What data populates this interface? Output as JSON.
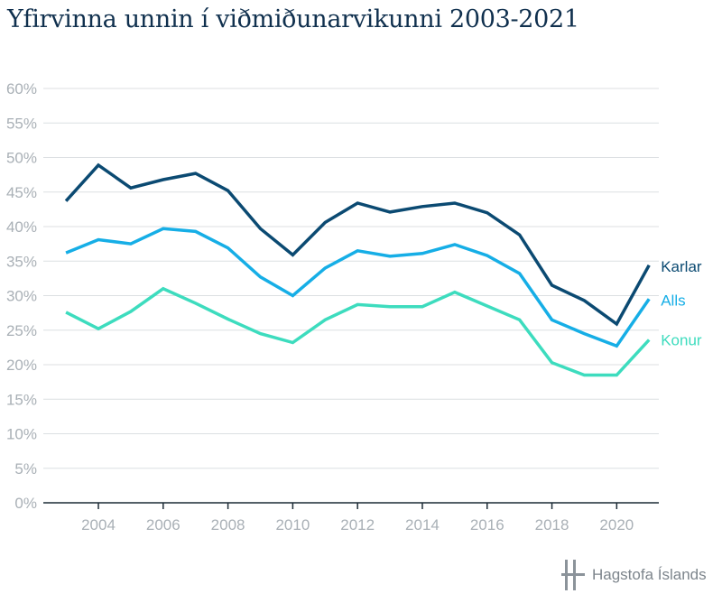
{
  "title": "Yfirvinna unnin í viðmiðunarvikunni 2003-2021",
  "footer": {
    "brand": "Hagstofa Íslands",
    "brand_icon": "hagstofa-logo-icon"
  },
  "chart_data": {
    "type": "line",
    "title": "Yfirvinna unnin í viðmiðunarvikunni 2003-2021",
    "xlabel": "",
    "ylabel": "",
    "x": [
      2003,
      2004,
      2005,
      2006,
      2007,
      2008,
      2009,
      2010,
      2011,
      2012,
      2013,
      2014,
      2015,
      2016,
      2017,
      2018,
      2019,
      2020,
      2021
    ],
    "xlim": [
      2002.3,
      2021.3
    ],
    "ylim": [
      0,
      60
    ],
    "x_ticks": [
      2004,
      2006,
      2008,
      2010,
      2012,
      2014,
      2016,
      2018,
      2020
    ],
    "x_tick_labels": [
      "2004",
      "2006",
      "2008",
      "2010",
      "2012",
      "2014",
      "2016",
      "2018",
      "2020"
    ],
    "y_ticks": [
      0,
      5,
      10,
      15,
      20,
      25,
      30,
      35,
      40,
      45,
      50,
      55,
      60
    ],
    "y_tick_labels": [
      "0%",
      "5%",
      "10%",
      "15%",
      "20%",
      "25%",
      "30%",
      "35%",
      "40%",
      "45%",
      "50%",
      "55%",
      "60%"
    ],
    "grid": true,
    "legend": "labels at line ends (right)",
    "series": [
      {
        "name": "Karlar",
        "color": "#0b4a72",
        "values": [
          43.7,
          48.9,
          45.6,
          46.8,
          47.7,
          45.2,
          39.7,
          35.9,
          40.6,
          43.4,
          42.1,
          42.9,
          43.4,
          42.0,
          38.8,
          31.5,
          29.3,
          25.9,
          34.4
        ]
      },
      {
        "name": "Alls",
        "color": "#16aee6",
        "values": [
          36.2,
          38.1,
          37.5,
          39.7,
          39.3,
          36.9,
          32.7,
          30.0,
          34.0,
          36.5,
          35.7,
          36.1,
          37.4,
          35.8,
          33.2,
          26.5,
          24.5,
          22.7,
          29.5
        ]
      },
      {
        "name": "Konur",
        "color": "#3ddcbe",
        "values": [
          27.6,
          25.2,
          27.7,
          31.0,
          28.9,
          26.6,
          24.5,
          23.2,
          26.5,
          28.7,
          28.4,
          28.4,
          30.5,
          28.5,
          26.5,
          20.3,
          18.5,
          18.5,
          23.6
        ]
      }
    ]
  }
}
